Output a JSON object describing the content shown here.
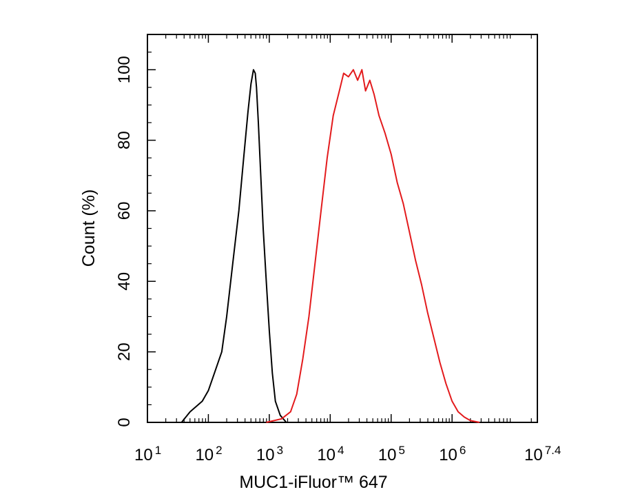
{
  "chart_data": {
    "type": "line",
    "xlabel": "MUC1-iFluor™ 647",
    "ylabel": "Count  (%)",
    "xscale": "log",
    "xlim": [
      1,
      7.4
    ],
    "ylim": [
      0,
      110
    ],
    "grid": false,
    "legend": "none",
    "x_ticks": [
      {
        "base": "10",
        "exp": "1",
        "value": 1
      },
      {
        "base": "10",
        "exp": "2",
        "value": 2
      },
      {
        "base": "10",
        "exp": "3",
        "value": 3
      },
      {
        "base": "10",
        "exp": "4",
        "value": 4
      },
      {
        "base": "10",
        "exp": "5",
        "value": 5
      },
      {
        "base": "10",
        "exp": "6",
        "value": 6
      },
      {
        "base": "10",
        "exp": "7.4",
        "value": 7.4
      }
    ],
    "y_ticks": [
      0,
      20,
      40,
      60,
      80,
      100
    ],
    "series": [
      {
        "color": "#000000",
        "x": [
          "10^1.56",
          "10^1.7",
          "10^1.9",
          "10^2.0",
          "10^2.1",
          "10^2.22",
          "10^2.3",
          "10^2.4",
          "10^2.5",
          "10^2.58",
          "10^2.65",
          "10^2.7",
          "10^2.74",
          "10^2.77",
          "10^2.79",
          "10^2.82",
          "10^2.86",
          "10^2.9",
          "10^2.95",
          "10^3.0",
          "10^3.05",
          "10^3.1",
          "10^3.18",
          "10^3.28"
        ],
        "values": [
          0,
          3,
          6,
          9,
          14,
          20,
          30,
          45,
          60,
          75,
          88,
          96,
          100,
          99,
          95,
          85,
          70,
          55,
          40,
          26,
          14,
          6,
          2,
          0
        ]
      },
      {
        "color": "#e31a1c",
        "x": [
          "10^2.95",
          "10^3.2",
          "10^3.35",
          "10^3.45",
          "10^3.55",
          "10^3.65",
          "10^3.75",
          "10^3.85",
          "10^3.95",
          "10^4.05",
          "10^4.15",
          "10^4.22",
          "10^4.3",
          "10^4.38",
          "10^4.45",
          "10^4.52",
          "10^4.58",
          "10^4.65",
          "10^4.72",
          "10^4.8",
          "10^4.9",
          "10^5.0",
          "10^5.1",
          "10^5.2",
          "10^5.3",
          "10^5.4",
          "10^5.5",
          "10^5.6",
          "10^5.7",
          "10^5.8",
          "10^5.9",
          "10^6.0",
          "10^6.1",
          "10^6.2",
          "10^6.3",
          "10^6.45"
        ],
        "values": [
          0,
          1,
          3,
          8,
          18,
          30,
          45,
          60,
          75,
          87,
          94,
          99,
          98,
          100,
          97,
          100,
          94,
          97,
          93,
          87,
          82,
          76,
          68,
          62,
          54,
          46,
          39,
          31,
          24,
          17,
          11,
          6,
          3,
          1.5,
          0.5,
          0
        ]
      }
    ]
  }
}
